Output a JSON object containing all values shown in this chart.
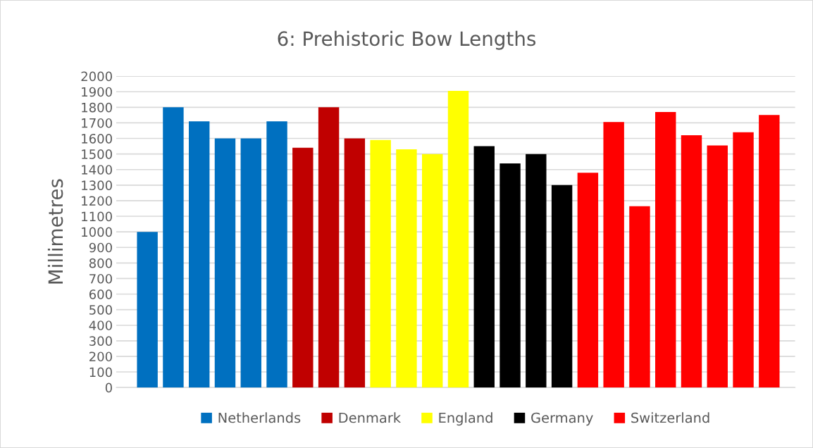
{
  "chart_data": {
    "type": "bar",
    "title": "6: Prehistoric Bow Lengths",
    "ylabel": "Millimetres",
    "categories": [
      null,
      null,
      null,
      null,
      null,
      null,
      null,
      null,
      null,
      null,
      null,
      null,
      null,
      null,
      null,
      null,
      null,
      null,
      null,
      null,
      null,
      null,
      null,
      null,
      null
    ],
    "series": [
      {
        "name": "Netherlands",
        "color": "#0070c0",
        "values": [
          1000,
          1800,
          1710,
          1600,
          1600,
          1710,
          null,
          null,
          null,
          null,
          null,
          null,
          null,
          null,
          null,
          null,
          null,
          null,
          null,
          null,
          null,
          null,
          null,
          null,
          null
        ]
      },
      {
        "name": "Denmark",
        "color": "#c00000",
        "values": [
          null,
          null,
          null,
          null,
          null,
          null,
          1540,
          1800,
          1600,
          null,
          null,
          null,
          null,
          null,
          null,
          null,
          null,
          null,
          null,
          null,
          null,
          null,
          null,
          null,
          null
        ]
      },
      {
        "name": "England",
        "color": "#ffff00",
        "values": [
          null,
          null,
          null,
          null,
          null,
          null,
          null,
          null,
          null,
          1590,
          1530,
          1500,
          1905,
          null,
          null,
          null,
          null,
          null,
          null,
          null,
          null,
          null,
          null,
          null,
          null
        ]
      },
      {
        "name": "Germany",
        "color": "#000000",
        "values": [
          null,
          null,
          null,
          null,
          null,
          null,
          null,
          null,
          null,
          null,
          null,
          null,
          null,
          1550,
          1440,
          1500,
          1300,
          null,
          null,
          null,
          null,
          null,
          null,
          null,
          null
        ]
      },
      {
        "name": "Switzerland",
        "color": "#ff0000",
        "values": [
          null,
          null,
          null,
          null,
          null,
          null,
          null,
          null,
          null,
          null,
          null,
          null,
          null,
          null,
          null,
          null,
          null,
          1380,
          1705,
          1165,
          1770,
          1620,
          1555,
          1640,
          1750
        ]
      }
    ],
    "ylim": [
      0,
      2000
    ],
    "yticks": [
      0,
      100,
      200,
      300,
      400,
      500,
      600,
      700,
      800,
      900,
      1000,
      1100,
      1200,
      1300,
      1400,
      1500,
      1600,
      1700,
      1800,
      1900,
      2000
    ],
    "stacked": true,
    "grid": "y",
    "legend": "bottom"
  }
}
